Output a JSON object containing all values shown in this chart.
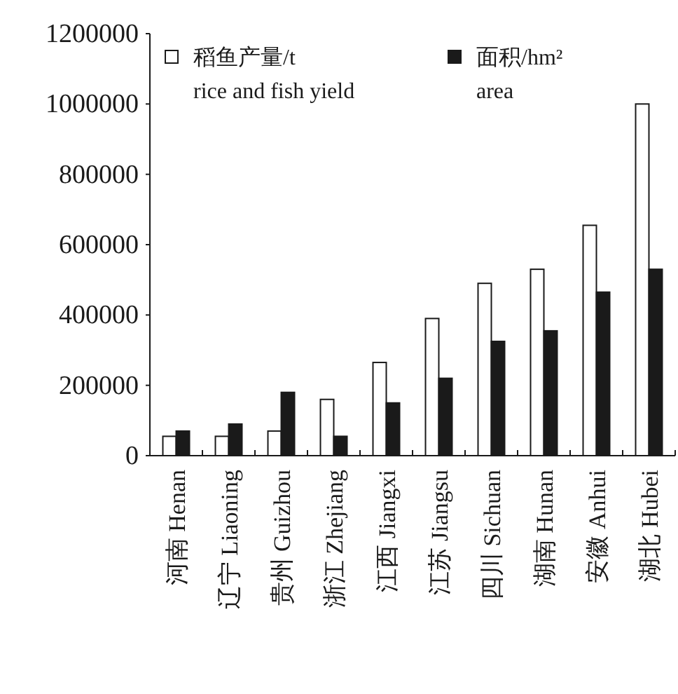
{
  "chart_data": {
    "type": "bar",
    "categories": [
      "河南 Henan",
      "辽宁 Liaoning",
      "贵州 Guizhou",
      "浙江 Zhejiang",
      "江西 Jiangxi",
      "江苏 Jiangsu",
      "四川 Sichuan",
      "湖南 Hunan",
      "安徽 Anhui",
      "湖北 Hubei"
    ],
    "series": [
      {
        "name": "稻鱼产量/t\nrice and fish yield",
        "color": "#ffffff",
        "values": [
          55000,
          55000,
          70000,
          160000,
          265000,
          390000,
          490000,
          530000,
          655000,
          1000000
        ]
      },
      {
        "name": "面积/hm²\narea",
        "color": "#1a1a1a",
        "values": [
          70000,
          90000,
          180000,
          55000,
          150000,
          220000,
          325000,
          355000,
          465000,
          530000
        ]
      }
    ],
    "ylim": [
      0,
      1200000
    ],
    "yticks": [
      0,
      200000,
      400000,
      600000,
      800000,
      1000000,
      1200000
    ],
    "grid": false,
    "legend": "top"
  }
}
